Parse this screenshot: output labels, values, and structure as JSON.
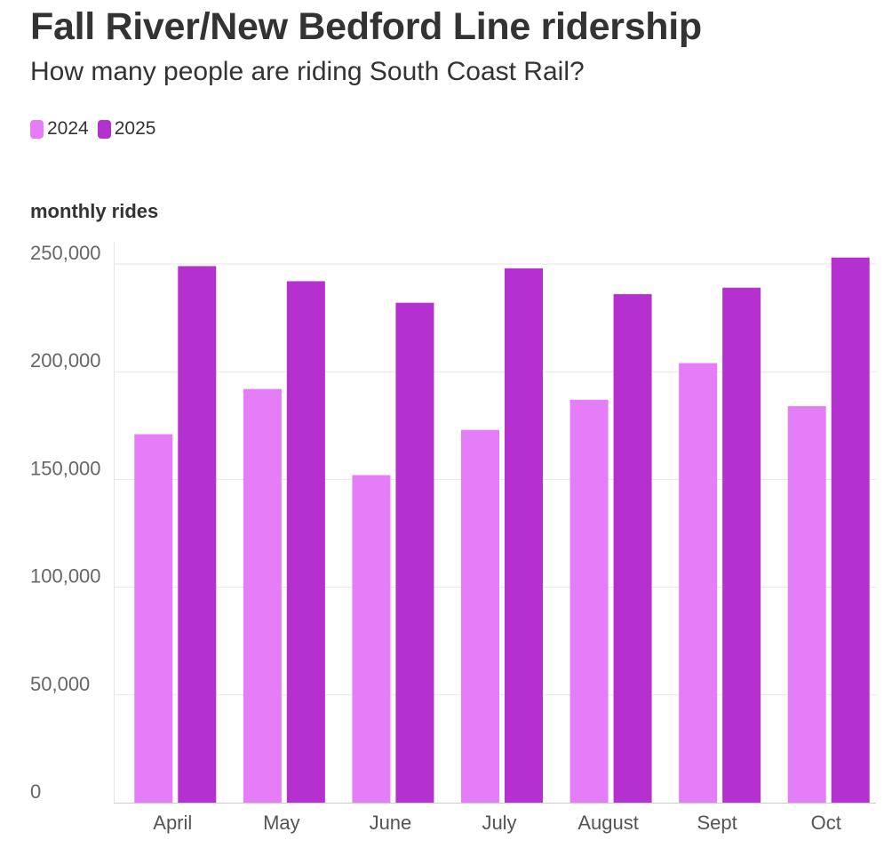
{
  "chart_data": {
    "type": "bar",
    "title": "Fall River/New Bedford Line ridership",
    "subtitle": "How many people are riding South Coast Rail?",
    "ylabel": "monthly rides",
    "xlabel": "",
    "categories": [
      "April",
      "May",
      "June",
      "July",
      "August",
      "Sept",
      "Oct"
    ],
    "series": [
      {
        "name": "2024",
        "color": "#e47df7",
        "values": [
          171000,
          192000,
          152000,
          173000,
          187000,
          204000,
          184000
        ]
      },
      {
        "name": "2025",
        "color": "#b431cf",
        "values": [
          249000,
          242000,
          232000,
          248000,
          236000,
          239000,
          253000
        ]
      }
    ],
    "ylim": [
      0,
      250000
    ],
    "yticks": [
      "0",
      "50,000",
      "100,000",
      "150,000",
      "200,000",
      "250,000"
    ],
    "ytick_values": [
      0,
      50000,
      100000,
      150000,
      200000,
      250000
    ],
    "grid": true,
    "legend_position": "top-left"
  }
}
